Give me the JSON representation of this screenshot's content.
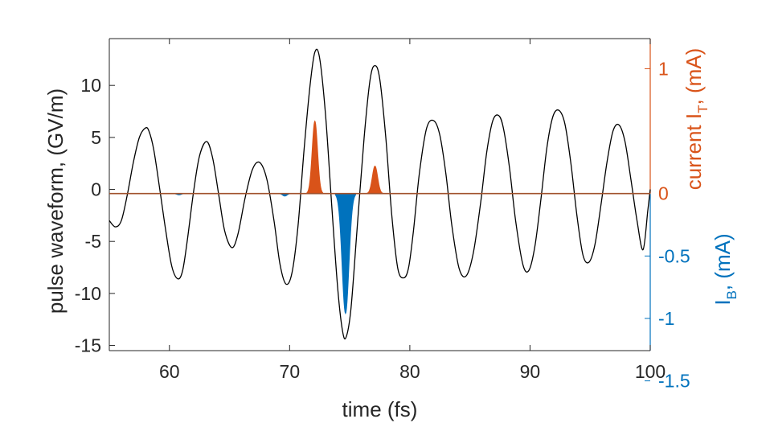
{
  "chart_data": {
    "type": "line",
    "xlabel": "time (fs)",
    "ylabel_left": "pulse waveform, (GV/m)",
    "ylabel_right_top": {
      "text": "current I",
      "sub": "T",
      "suffix": ", (mA)"
    },
    "ylabel_right_bottom": {
      "text": "I",
      "sub": "B",
      "suffix": ", (mA)"
    },
    "xlim": [
      55,
      100
    ],
    "ylim_left": [
      -15.5,
      14.5
    ],
    "x_ticks": [
      60,
      70,
      80,
      90,
      100
    ],
    "x_tick_labels": [
      "60",
      "70",
      "80",
      "90",
      "100"
    ],
    "y_left_ticks": [
      -15,
      -10,
      -5,
      0,
      5,
      10
    ],
    "y_left_tick_labels": [
      "-15",
      "-10",
      "-5",
      "0",
      "5",
      "10"
    ],
    "y_right_top_ticks": [
      0,
      1
    ],
    "y_right_top_tick_labels": [
      "0",
      "1"
    ],
    "y_right_bottom_ticks": [
      -0.5,
      -1,
      -1.5
    ],
    "y_right_bottom_tick_labels": [
      "-0.5",
      "-1",
      "-1.5"
    ],
    "right_axis_zero_at_left_value": -0.4,
    "right_axis_mA_per_left_unit": 0.0833,
    "grid": false,
    "legend": "none",
    "colors": {
      "waveform": "#000000",
      "current_T": "#d95319",
      "current_B": "#0072bd",
      "axis": "#262626"
    },
    "series": [
      {
        "key": "waveform",
        "x": [
          55,
          55.5,
          56,
          56.5,
          57,
          57.5,
          58,
          58.3,
          58.7,
          59.2,
          59.7,
          60.2,
          60.7,
          61.1,
          61.5,
          62,
          62.5,
          63.1,
          63.6,
          64.1,
          64.6,
          65.2,
          65.7,
          66.3,
          66.9,
          67.5,
          68.1,
          68.7,
          69.2,
          69.7,
          70.2,
          70.7,
          71.2,
          71.7,
          72.1,
          72.5,
          73,
          73.5,
          74,
          74.4,
          74.7,
          75.1,
          75.6,
          76.2,
          76.7,
          77.1,
          77.5,
          78,
          78.5,
          79,
          79.5,
          79.9,
          80.3,
          80.8,
          81.4,
          82,
          82.5,
          83,
          83.5,
          84.1,
          84.7,
          85.3,
          85.9,
          86.4,
          86.9,
          87.4,
          87.8,
          88.3,
          88.8,
          89.4,
          89.9,
          90.4,
          90.9,
          91.4,
          91.9,
          92.4,
          92.9,
          93.4,
          93.9,
          94.4,
          94.9,
          95.4,
          95.9,
          96.4,
          96.9,
          97.4,
          97.9,
          98.4,
          98.9,
          99.4,
          99.8,
          100
        ],
        "y": [
          -3.0,
          -3.6,
          -3.0,
          -0.5,
          2.6,
          5.0,
          5.9,
          5.6,
          3.8,
          0.0,
          -4.0,
          -7.4,
          -8.6,
          -7.8,
          -4.8,
          -0.3,
          3.2,
          4.6,
          3.0,
          -0.5,
          -4.0,
          -5.6,
          -4.3,
          -0.8,
          1.9,
          2.6,
          1.0,
          -3.0,
          -7.2,
          -9.1,
          -8.0,
          -3.5,
          3.8,
          10.0,
          13.2,
          12.6,
          7.0,
          -1.5,
          -9.5,
          -13.6,
          -14.2,
          -11.5,
          -4.0,
          5.0,
          10.6,
          11.9,
          10.6,
          5.0,
          -2.5,
          -7.6,
          -8.5,
          -7.5,
          -4.0,
          1.6,
          5.9,
          6.6,
          5.2,
          1.5,
          -3.5,
          -7.6,
          -8.3,
          -6.0,
          -1.2,
          3.6,
          6.6,
          7.1,
          5.8,
          2.0,
          -3.0,
          -7.2,
          -7.8,
          -5.5,
          -1.0,
          4.0,
          7.0,
          7.6,
          6.3,
          2.5,
          -2.5,
          -6.3,
          -7.0,
          -5.3,
          -1.5,
          2.6,
          5.6,
          6.2,
          4.6,
          0.9,
          -3.0,
          -5.8,
          -2.0,
          0.0
        ]
      },
      {
        "key": "current_T",
        "peaks": [
          {
            "center": 72.1,
            "height_mA": 0.58,
            "width_fs": 0.22
          },
          {
            "center": 77.1,
            "height_mA": 0.22,
            "width_fs": 0.22
          }
        ]
      },
      {
        "key": "current_B",
        "peaks": [
          {
            "center": 74.65,
            "height_mA": -0.96,
            "width_fs": 0.28
          },
          {
            "center": 69.6,
            "height_mA": -0.02,
            "width_fs": 0.18
          },
          {
            "center": 60.8,
            "height_mA": -0.01,
            "width_fs": 0.18
          }
        ]
      }
    ]
  }
}
